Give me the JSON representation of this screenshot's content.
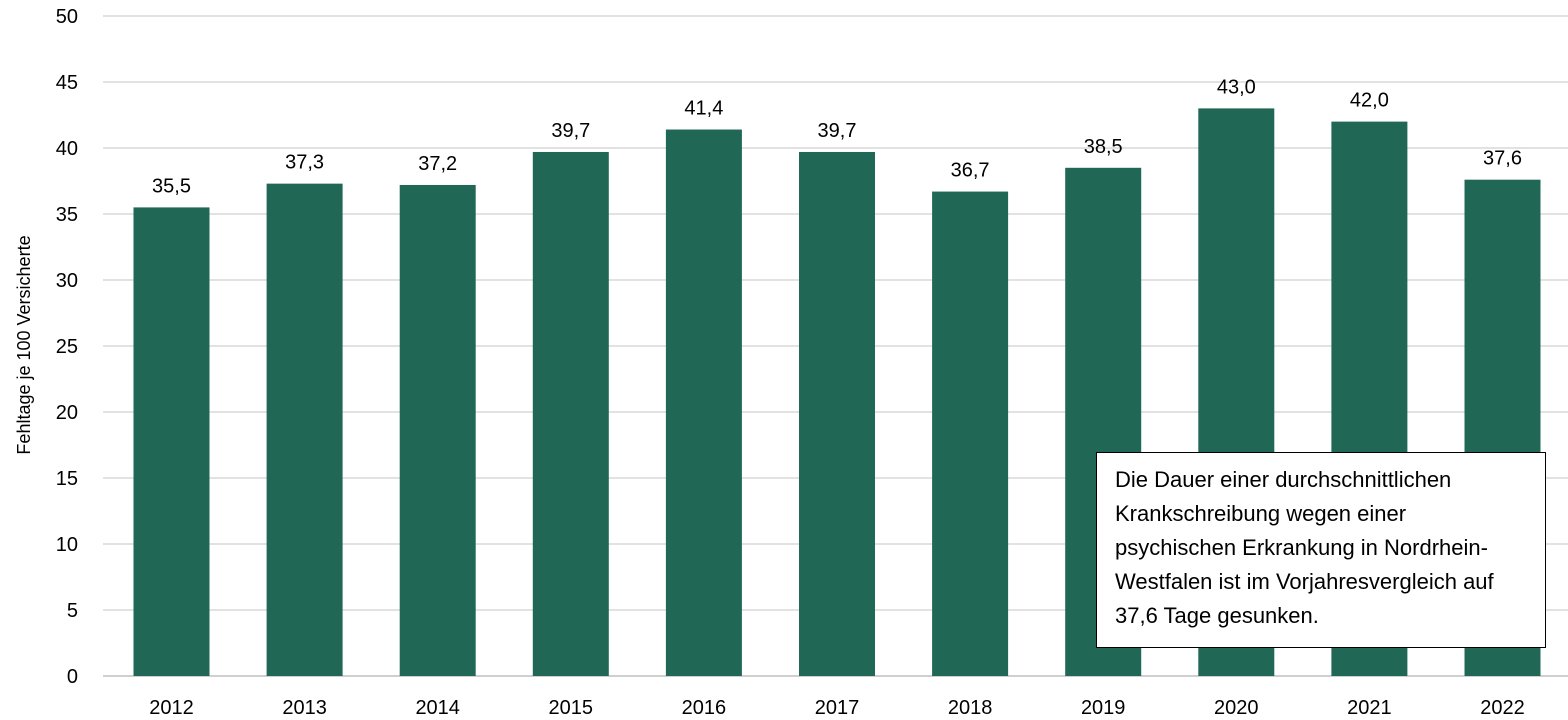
{
  "chart_data": {
    "type": "bar",
    "categories": [
      "2012",
      "2013",
      "2014",
      "2015",
      "2016",
      "2017",
      "2018",
      "2019",
      "2020",
      "2021",
      "2022"
    ],
    "values": [
      35.5,
      37.3,
      37.2,
      39.7,
      41.4,
      39.7,
      36.7,
      38.5,
      43.0,
      42.0,
      37.6
    ],
    "data_labels": [
      "35,5",
      "37,3",
      "37,2",
      "39,7",
      "41,4",
      "39,7",
      "36,7",
      "38,5",
      "43,0",
      "42,0",
      "37,6"
    ],
    "ylabel": "Fehltage je 100 Versicherte",
    "ylim": [
      0,
      50
    ],
    "yticks": [
      0,
      5,
      10,
      15,
      20,
      25,
      30,
      35,
      40,
      45,
      50
    ],
    "grid": true,
    "legend": "none",
    "bar_color": "#216756",
    "grid_color": "#d9d9d9",
    "annotation": "Die Dauer einer durchschnittlichen Krankschreibung wegen einer psychischen Erkrankung in Nordrhein-Westfalen ist im Vorjahresvergleich auf 37,6 Tage gesunken."
  }
}
